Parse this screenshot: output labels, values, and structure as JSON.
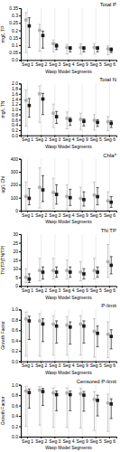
{
  "chart_data": [
    {
      "type": "errorbar",
      "title": "Total P",
      "xlabel": "Wasp Model Segments",
      "ylabel": "mg/L TP",
      "categories": [
        "Seg 1",
        "Seg 2",
        "Seg 3",
        "Seg 4",
        "Seg 9",
        "Seg 5",
        "Seg 6"
      ],
      "ylim": [
        0,
        0.35
      ],
      "yticks": [
        {
          "value": 0,
          "label": "0.0"
        },
        0.05,
        0.1,
        0.15,
        0.2,
        0.25,
        0.3,
        0.35
      ],
      "grid": "x",
      "series": [
        {
          "color": "#b0b0b0",
          "marker": "circle",
          "values": [
            0.27,
            0.2,
            0.11,
            0.085,
            0.085,
            0.085,
            0.075
          ],
          "lo": [
            0.05,
            0.06,
            0.055,
            0.04,
            0.04,
            0.04,
            0.035
          ],
          "hi": [
            0.32,
            0.24,
            0.135,
            0.105,
            0.11,
            0.11,
            0.095
          ]
        },
        {
          "color": "#1a1a1a",
          "marker": "square",
          "values": [
            0.23,
            0.165,
            0.095,
            0.08,
            0.08,
            0.08,
            0.07
          ],
          "lo": [
            0.085,
            0.08,
            0.07,
            0.055,
            0.055,
            0.055,
            0.05
          ],
          "hi": [
            0.285,
            0.195,
            0.11,
            0.09,
            0.09,
            0.09,
            0.082
          ]
        }
      ]
    },
    {
      "type": "errorbar",
      "title": "Total N",
      "xlabel": "Wasp Model Segments",
      "ylabel": "mg/L TN",
      "categories": [
        "Seg 1",
        "Seg 2",
        "Seg 3",
        "Seg 4",
        "Seg 9",
        "Seg 5",
        "Seg 6"
      ],
      "ylim": [
        0,
        2
      ],
      "yticks": [
        {
          "value": 0,
          "label": "0.0"
        },
        0.2,
        0.4,
        0.6,
        0.8,
        {
          "value": 1,
          "label": "1.0"
        },
        1.2,
        1.4,
        1.6,
        1.8,
        {
          "value": 2,
          "label": "2.0"
        }
      ],
      "grid": "x",
      "series": [
        {
          "color": "#b0b0b0",
          "marker": "circle",
          "values": [
            1.35,
            1.6,
            0.85,
            0.65,
            0.62,
            0.58,
            0.52
          ],
          "lo": [
            0.35,
            0.5,
            0.3,
            0.25,
            0.22,
            0.2,
            0.18
          ],
          "hi": [
            1.75,
            1.9,
            1.2,
            0.9,
            0.85,
            0.8,
            0.72
          ]
        },
        {
          "color": "#1a1a1a",
          "marker": "square",
          "values": [
            1.15,
            1.4,
            0.72,
            0.58,
            0.54,
            0.5,
            0.46
          ],
          "lo": [
            0.7,
            0.8,
            0.46,
            0.38,
            0.36,
            0.34,
            0.3
          ],
          "hi": [
            1.42,
            1.62,
            0.92,
            0.68,
            0.63,
            0.6,
            0.56
          ]
        }
      ]
    },
    {
      "type": "errorbar",
      "title": "Chla*",
      "xlabel": "Wasp Model Segments",
      "ylabel": "ug/L Chl",
      "categories": [
        "Seg 1",
        "Seg 2",
        "Seg 3",
        "Seg 4",
        "Seg 9",
        "Seg 5",
        "Seg 6"
      ],
      "ylim": [
        0,
        400
      ],
      "yticks": [
        0,
        100,
        200,
        300,
        400
      ],
      "grid": "x",
      "series": [
        {
          "color": "#b0b0b0",
          "marker": "circle",
          "values": [
            110,
            180,
            140,
            110,
            95,
            120,
            75
          ],
          "lo": [
            10,
            20,
            15,
            10,
            8,
            10,
            5
          ],
          "hi": [
            220,
            330,
            250,
            200,
            180,
            220,
            145
          ]
        },
        {
          "color": "#1a1a1a",
          "marker": "square",
          "values": [
            95,
            160,
            125,
            100,
            85,
            108,
            65
          ],
          "lo": [
            45,
            70,
            50,
            40,
            35,
            45,
            25
          ],
          "hi": [
            170,
            270,
            200,
            165,
            145,
            178,
            108
          ]
        }
      ]
    },
    {
      "type": "errorbar",
      "title": "TN:TP",
      "xlabel": "Wasp Model Segments",
      "ylabel": "TN:TP(TN/TP)",
      "categories": [
        "Seg 1",
        "Seg 2",
        "Seg 3",
        "Seg 4",
        "Seg 9",
        "Seg 5",
        "Seg 6"
      ],
      "ylim": [
        0,
        30
      ],
      "yticks": [
        0,
        5,
        10,
        15,
        20,
        25,
        30
      ],
      "grid": "x",
      "series": [
        {
          "color": "#b0b0b0",
          "marker": "circle",
          "values": [
            5,
            9,
            9,
            9,
            8,
            9,
            14
          ],
          "lo": [
            2,
            3,
            4,
            4,
            3,
            4,
            5
          ],
          "hi": [
            10,
            16,
            16,
            15,
            14,
            16,
            24
          ]
        },
        {
          "color": "#1a1a1a",
          "marker": "square",
          "values": [
            4,
            8,
            8,
            8,
            7,
            8,
            12
          ],
          "lo": [
            2,
            4,
            5,
            5,
            4,
            5,
            7
          ],
          "hi": [
            7,
            11,
            11,
            11,
            10,
            11,
            17
          ]
        }
      ]
    },
    {
      "type": "errorbar",
      "title": "P-limit",
      "xlabel": "Wasp Model Segments",
      "ylabel": "Growth Factor",
      "categories": [
        "Seg 1",
        "Seg 2",
        "Seg 3",
        "Seg 4",
        "Seg 9",
        "Seg 5",
        "Seg 6"
      ],
      "ylim": [
        0,
        1
      ],
      "yticks": [
        {
          "value": 0,
          "label": "0.0"
        },
        0.2,
        0.4,
        0.6,
        0.8,
        {
          "value": 1,
          "label": "1.0"
        }
      ],
      "grid": "x",
      "series": [
        {
          "color": "#b0b0b0",
          "marker": "circle",
          "values": [
            0.82,
            0.78,
            0.72,
            0.7,
            0.72,
            0.58,
            0.52
          ],
          "lo": [
            0.1,
            0.1,
            0.12,
            0.12,
            0.12,
            0.08,
            0.07
          ],
          "hi": [
            0.95,
            0.92,
            0.88,
            0.86,
            0.88,
            0.82,
            0.76
          ]
        },
        {
          "color": "#1a1a1a",
          "marker": "square",
          "values": [
            0.78,
            0.72,
            0.68,
            0.66,
            0.68,
            0.54,
            0.48
          ],
          "lo": [
            0.42,
            0.38,
            0.35,
            0.33,
            0.35,
            0.28,
            0.24
          ],
          "hi": [
            0.87,
            0.82,
            0.78,
            0.76,
            0.78,
            0.68,
            0.61
          ]
        }
      ]
    },
    {
      "type": "errorbar",
      "title": "Censored P-limit",
      "xlabel": "Wasp Model Segments",
      "ylabel": "Growth Factor",
      "categories": [
        "Seg 1",
        "Seg 2",
        "Seg 3",
        "Seg 4",
        "Seg 9",
        "Seg 5",
        "Seg 6"
      ],
      "ylim": [
        0,
        1
      ],
      "yticks": [
        {
          "value": 0,
          "label": "0.0"
        },
        0.2,
        0.4,
        0.6,
        0.8,
        {
          "value": 1,
          "label": "1.0"
        }
      ],
      "grid": "x",
      "series": [
        {
          "color": "#b0b0b0",
          "marker": "circle",
          "values": [
            0.88,
            0.9,
            0.84,
            0.84,
            0.83,
            0.72,
            0.65
          ],
          "lo": [
            0.2,
            0.22,
            0.18,
            0.18,
            0.17,
            0.12,
            0.1
          ],
          "hi": [
            0.97,
            0.97,
            0.94,
            0.94,
            0.93,
            0.87,
            0.82
          ]
        },
        {
          "color": "#1a1a1a",
          "marker": "square",
          "values": [
            0.85,
            0.87,
            0.81,
            0.81,
            0.8,
            0.7,
            0.63
          ],
          "lo": [
            0.55,
            0.6,
            0.5,
            0.5,
            0.49,
            0.4,
            0.35
          ],
          "hi": [
            0.92,
            0.93,
            0.88,
            0.88,
            0.87,
            0.8,
            0.73
          ]
        }
      ]
    }
  ]
}
